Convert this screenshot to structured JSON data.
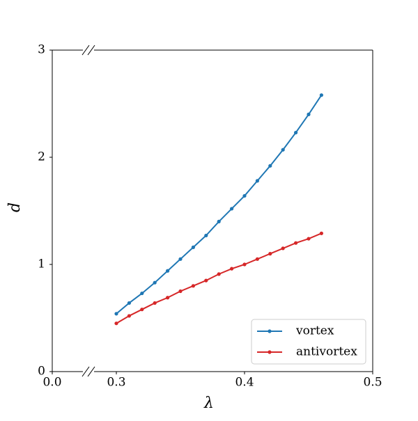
{
  "chart_data": {
    "type": "line",
    "xlabel": "λ",
    "ylabel": "d",
    "x": [
      0.3,
      0.31,
      0.32,
      0.33,
      0.34,
      0.35,
      0.36,
      0.37,
      0.38,
      0.39,
      0.4,
      0.41,
      0.42,
      0.43,
      0.44,
      0.45,
      0.46
    ],
    "series": [
      {
        "name": "vortex",
        "color": "#1f77b4",
        "values": [
          0.54,
          0.64,
          0.73,
          0.83,
          0.94,
          1.05,
          1.16,
          1.27,
          1.4,
          1.52,
          1.64,
          1.78,
          1.92,
          2.07,
          2.23,
          2.4,
          2.58
        ]
      },
      {
        "name": "antivortex",
        "color": "#d62728",
        "values": [
          0.45,
          0.52,
          0.58,
          0.64,
          0.69,
          0.75,
          0.8,
          0.85,
          0.91,
          0.96,
          1.0,
          1.05,
          1.1,
          1.15,
          1.2,
          1.24,
          1.29
        ]
      }
    ],
    "xlim": [
      0.0,
      0.5
    ],
    "xticks": [
      {
        "value": 0.0,
        "label": "0.0"
      },
      0.3,
      0.4,
      0.5
    ],
    "xbreak": true,
    "ylim": [
      0,
      3
    ],
    "yticks": [
      0,
      1,
      2,
      3
    ],
    "legend": "lower right"
  }
}
